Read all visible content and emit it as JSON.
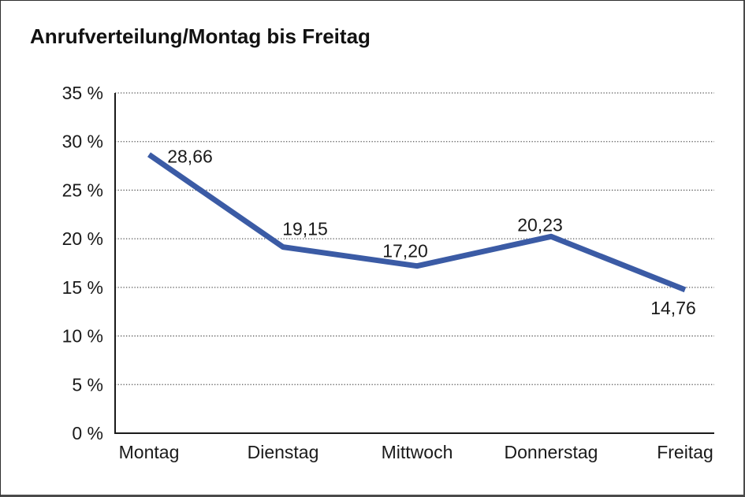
{
  "window": {
    "title": "Anrufverteilung/Montag bis Freitag"
  },
  "chart_data": {
    "type": "line",
    "title": "Anrufverteilung/Montag bis Freitag",
    "categories": [
      "Montag",
      "Dienstag",
      "Mittwoch",
      "Donnerstag",
      "Freitag"
    ],
    "values": [
      28.66,
      19.15,
      17.2,
      20.23,
      14.76
    ],
    "value_labels": [
      "28,66",
      "19,15",
      "17,20",
      "20,23",
      "14,76"
    ],
    "xlabel": "",
    "ylabel": "",
    "ylim": [
      0,
      35
    ],
    "y_tick_step": 5,
    "y_tick_labels": [
      "0 %",
      "5 %",
      "10 %",
      "15 %",
      "20 %",
      "25 %",
      "30 %",
      "35 %"
    ],
    "grid": "horizontal-dotted",
    "legend": "none",
    "colors": {
      "line": "#3B5BA5",
      "axis": "#1a1a1a",
      "gridline": "#555555",
      "text": "#1a1a1a",
      "background": "#ffffff"
    }
  }
}
